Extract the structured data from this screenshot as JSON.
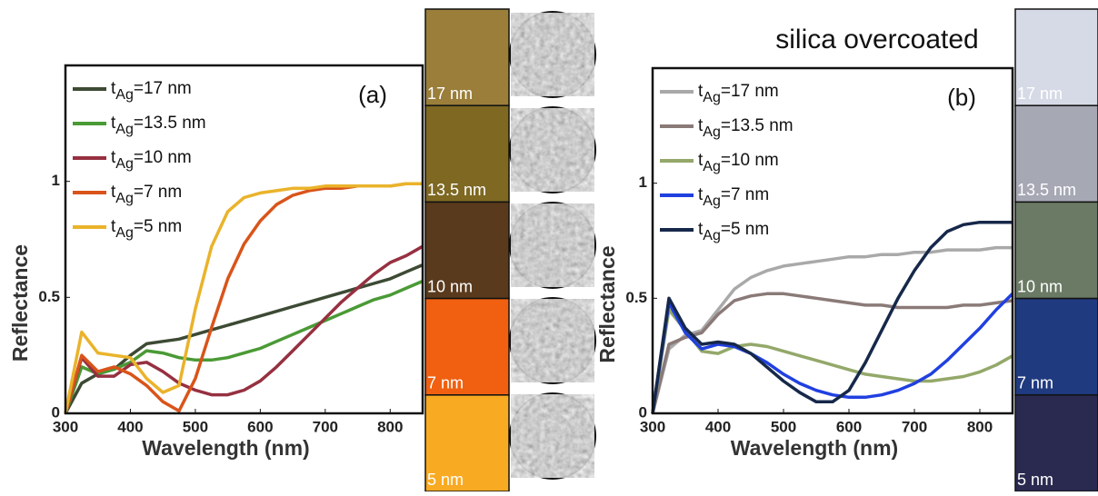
{
  "chart_data": [
    {
      "type": "line",
      "annotation": "(a)",
      "x_label": "Wavelength (nm)",
      "y_label": "Reflectance",
      "xlim": [
        300,
        850
      ],
      "xticks": [
        300,
        400,
        500,
        600,
        700,
        800
      ],
      "ylim": [
        0,
        1.5
      ],
      "yticks": [
        0,
        0.5,
        1
      ],
      "x": [
        300,
        325,
        350,
        375,
        400,
        425,
        450,
        475,
        500,
        525,
        550,
        575,
        600,
        625,
        650,
        675,
        700,
        725,
        750,
        775,
        800,
        825,
        850
      ],
      "series": [
        {
          "name": "tAg=17 nm",
          "color": "#3d4a34",
          "values": [
            0,
            0.13,
            0.17,
            0.19,
            0.25,
            0.3,
            0.31,
            0.32,
            0.34,
            0.36,
            0.38,
            0.4,
            0.42,
            0.44,
            0.46,
            0.48,
            0.5,
            0.52,
            0.54,
            0.56,
            0.58,
            0.61,
            0.64
          ]
        },
        {
          "name": "tAg=13.5 nm",
          "color": "#4a9a35",
          "values": [
            0,
            0.2,
            0.17,
            0.19,
            0.22,
            0.27,
            0.26,
            0.24,
            0.23,
            0.23,
            0.24,
            0.26,
            0.28,
            0.31,
            0.34,
            0.37,
            0.4,
            0.43,
            0.46,
            0.49,
            0.51,
            0.54,
            0.57
          ]
        },
        {
          "name": "tAg=10 nm",
          "color": "#963040",
          "values": [
            0,
            0.24,
            0.16,
            0.16,
            0.21,
            0.22,
            0.18,
            0.13,
            0.1,
            0.08,
            0.08,
            0.1,
            0.14,
            0.2,
            0.27,
            0.34,
            0.41,
            0.48,
            0.54,
            0.6,
            0.65,
            0.68,
            0.72
          ]
        },
        {
          "name": "tAg=7 nm",
          "color": "#d9541a",
          "values": [
            0,
            0.25,
            0.18,
            0.2,
            0.17,
            0.12,
            0.05,
            0.01,
            0.15,
            0.37,
            0.58,
            0.73,
            0.83,
            0.9,
            0.94,
            0.96,
            0.97,
            0.97,
            0.98,
            0.98,
            0.98,
            0.99,
            0.99
          ]
        },
        {
          "name": "tAg=5 nm",
          "color": "#eab32b",
          "values": [
            0,
            0.35,
            0.26,
            0.25,
            0.24,
            0.15,
            0.09,
            0.12,
            0.45,
            0.72,
            0.87,
            0.93,
            0.95,
            0.96,
            0.97,
            0.97,
            0.98,
            0.98,
            0.98,
            0.98,
            0.98,
            0.99,
            0.99
          ]
        }
      ],
      "swatches": [
        {
          "label": "17 nm",
          "color": "#9a7e3a"
        },
        {
          "label": "13.5 nm",
          "color": "#7e6822"
        },
        {
          "label": "10 nm",
          "color": "#5a3a1c"
        },
        {
          "label": "7 nm",
          "color": "#f06010"
        },
        {
          "label": "5 nm",
          "color": "#f8aa22"
        }
      ]
    },
    {
      "type": "line",
      "title": "silica overcoated",
      "annotation": "(b)",
      "x_label": "Wavelength (nm)",
      "y_label": "Reflectance",
      "xlim": [
        300,
        850
      ],
      "xticks": [
        300,
        400,
        500,
        600,
        700,
        800
      ],
      "ylim": [
        0,
        1.5
      ],
      "yticks": [
        0,
        0.5,
        1
      ],
      "x": [
        300,
        325,
        350,
        375,
        400,
        425,
        450,
        475,
        500,
        525,
        550,
        575,
        600,
        625,
        650,
        675,
        700,
        725,
        750,
        775,
        800,
        825,
        850
      ],
      "series": [
        {
          "name": "tAg=17 nm",
          "color": "#a9a9a9",
          "values": [
            0,
            0.28,
            0.34,
            0.36,
            0.45,
            0.54,
            0.59,
            0.62,
            0.64,
            0.65,
            0.66,
            0.67,
            0.68,
            0.68,
            0.69,
            0.69,
            0.7,
            0.7,
            0.71,
            0.71,
            0.71,
            0.72,
            0.72
          ]
        },
        {
          "name": "tAg=13.5 nm",
          "color": "#8a7a78",
          "values": [
            0,
            0.3,
            0.33,
            0.35,
            0.43,
            0.49,
            0.51,
            0.52,
            0.52,
            0.51,
            0.5,
            0.49,
            0.48,
            0.47,
            0.47,
            0.46,
            0.46,
            0.46,
            0.46,
            0.47,
            0.47,
            0.48,
            0.49
          ]
        },
        {
          "name": "tAg=10 nm",
          "color": "#94a86a",
          "values": [
            0,
            0.45,
            0.36,
            0.27,
            0.26,
            0.29,
            0.3,
            0.29,
            0.27,
            0.25,
            0.23,
            0.21,
            0.19,
            0.17,
            0.16,
            0.15,
            0.14,
            0.14,
            0.15,
            0.16,
            0.18,
            0.21,
            0.25
          ]
        },
        {
          "name": "tAg=7 nm",
          "color": "#2040e0",
          "values": [
            0,
            0.48,
            0.35,
            0.28,
            0.3,
            0.29,
            0.26,
            0.22,
            0.17,
            0.13,
            0.1,
            0.08,
            0.07,
            0.07,
            0.08,
            0.1,
            0.13,
            0.17,
            0.23,
            0.3,
            0.37,
            0.45,
            0.52
          ]
        },
        {
          "name": "tAg=5 nm",
          "color": "#16284a",
          "values": [
            0,
            0.5,
            0.37,
            0.3,
            0.31,
            0.3,
            0.26,
            0.2,
            0.14,
            0.09,
            0.05,
            0.05,
            0.1,
            0.22,
            0.36,
            0.5,
            0.62,
            0.72,
            0.79,
            0.82,
            0.83,
            0.83,
            0.83
          ]
        }
      ],
      "swatches": [
        {
          "label": "17 nm",
          "color": "#d6dae6"
        },
        {
          "label": "13.5 nm",
          "color": "#a6a8b4"
        },
        {
          "label": "10 nm",
          "color": "#6a7a64"
        },
        {
          "label": "7 nm",
          "color": "#203a80"
        },
        {
          "label": "5 nm",
          "color": "#2a2a50"
        }
      ]
    }
  ]
}
